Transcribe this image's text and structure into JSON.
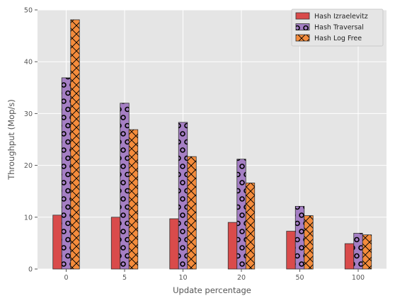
{
  "chart_data": {
    "type": "bar",
    "categories": [
      "0",
      "5",
      "10",
      "20",
      "50",
      "100"
    ],
    "series": [
      {
        "name": "Hash Izraelevitz",
        "values": [
          10.4,
          10.0,
          9.7,
          9.0,
          7.3,
          4.9
        ],
        "color": "#d94b4b",
        "hatch": "none"
      },
      {
        "name": "Hash Traversal",
        "values": [
          36.9,
          32.0,
          28.3,
          21.2,
          12.1,
          6.9
        ],
        "color": "#a57fc4",
        "hatch": "circles"
      },
      {
        "name": "Hash Log Free",
        "values": [
          48.1,
          26.9,
          21.7,
          16.6,
          10.3,
          6.6
        ],
        "color": "#f48c3c",
        "hatch": "x"
      }
    ],
    "xlabel": "Update percentage",
    "ylabel": "Throughput (Mop/s)",
    "ylim": [
      0,
      50
    ],
    "yticks": [
      0,
      10,
      20,
      30,
      40,
      50
    ],
    "grid": true,
    "legend_position": "top-right",
    "background": "#e5e5e5"
  }
}
